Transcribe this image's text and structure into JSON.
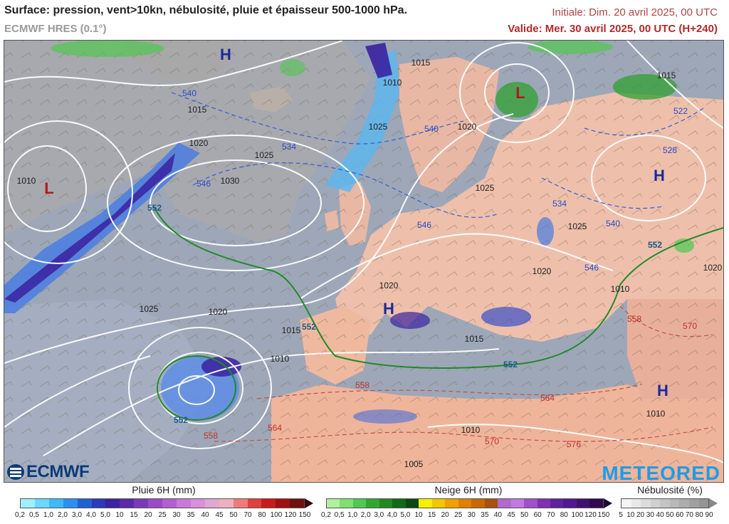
{
  "header": {
    "title": "Surface: pression, vent>10kn, nébulosité, pluie et épaisseur 500-1000 hPa.",
    "model": "ECMWF HRES (0.1°)",
    "init": "Initiale: Dim. 20 avril 2025, 00 UTC",
    "valid": "Valide: Mer. 30 avril 2025, 00 UTC (H+240)"
  },
  "map": {
    "logos": {
      "left": "ECMWF",
      "right": "METEORED"
    },
    "pressure_centers": [
      {
        "kind": "H",
        "color": "#1a2a9a"
      },
      {
        "kind": "L",
        "color": "#b01a1a"
      },
      {
        "kind": "L",
        "color": "#b01a1a"
      },
      {
        "kind": "H",
        "color": "#1a2a9a"
      },
      {
        "kind": "H",
        "color": "#1a2a9a"
      },
      {
        "kind": "H",
        "color": "#1a2a9a"
      }
    ],
    "isobar_labels": [
      "1015",
      "1010",
      "1015",
      "1020",
      "1025",
      "1030",
      "1010",
      "1025",
      "1020",
      "1025",
      "1025",
      "1020",
      "1020",
      "1025",
      "1020",
      "1015",
      "1010",
      "1010",
      "1015",
      "1005",
      "1020",
      "1010",
      "1010",
      "1015"
    ],
    "thickness_labels_blue": [
      "540",
      "534",
      "540",
      "546",
      "528",
      "522",
      "534",
      "546",
      "540",
      "546"
    ],
    "thickness_labels_green": [
      "552",
      "552",
      "552",
      "552",
      "552"
    ],
    "thickness_labels_red": [
      "558",
      "564",
      "570",
      "576",
      "558",
      "558",
      "570",
      "564"
    ]
  },
  "legends": {
    "rain": {
      "title": "Pluie 6H (mm)",
      "labels": [
        "0,2",
        "0,5",
        "1,0",
        "2,0",
        "3,0",
        "4,0",
        "5,0",
        "10",
        "15",
        "20",
        "25",
        "30",
        "35",
        "40",
        "45",
        "50",
        "70",
        "80",
        "100",
        "120",
        "150"
      ],
      "colors": [
        "#9ef0ff",
        "#6ad8ff",
        "#40b8ff",
        "#2a90f0",
        "#2060d0",
        "#2a3ab8",
        "#3a22a0",
        "#5a2aa8",
        "#7a3ab8",
        "#9a4ac8",
        "#b060d0",
        "#c878d8",
        "#d890d8",
        "#e0a8d0",
        "#f0b0c0",
        "#f07a7a",
        "#e04040",
        "#c81a1a",
        "#a01010",
        "#701010"
      ],
      "arrow_color": "#3a0a10"
    },
    "snow": {
      "title": "Neige 6H (mm)",
      "labels": [
        "0,2",
        "0,5",
        "1,0",
        "2,0",
        "3,0",
        "4,0",
        "5,0",
        "10",
        "15",
        "20",
        "25",
        "30",
        "35",
        "40",
        "45",
        "50",
        "60",
        "70",
        "80",
        "100",
        "120",
        "150"
      ],
      "colors": [
        "#b0f0a0",
        "#80e070",
        "#50c850",
        "#30a830",
        "#208a20",
        "#106a18",
        "#0a4a10",
        "#f8f000",
        "#f0c800",
        "#f0a000",
        "#e08000",
        "#c86800",
        "#a85010",
        "#b06ad0",
        "#c07ae0",
        "#a050c8",
        "#8030b0",
        "#6020a0",
        "#501890",
        "#401070",
        "#300a50"
      ],
      "arrow_color": "#200838"
    },
    "cloud": {
      "title": "Nébulosité (%)",
      "labels": [
        "5",
        "10",
        "20",
        "30",
        "40",
        "50",
        "60",
        "70",
        "80",
        "90"
      ],
      "colors": [
        "#f4f4f4",
        "#e8e8e8",
        "#dcdcdc",
        "#d0d0d0",
        "#c4c4c4",
        "#b8b8b8",
        "#acacac",
        "#a0a0a0",
        "#949494"
      ],
      "arrow_color": "#888888"
    }
  }
}
